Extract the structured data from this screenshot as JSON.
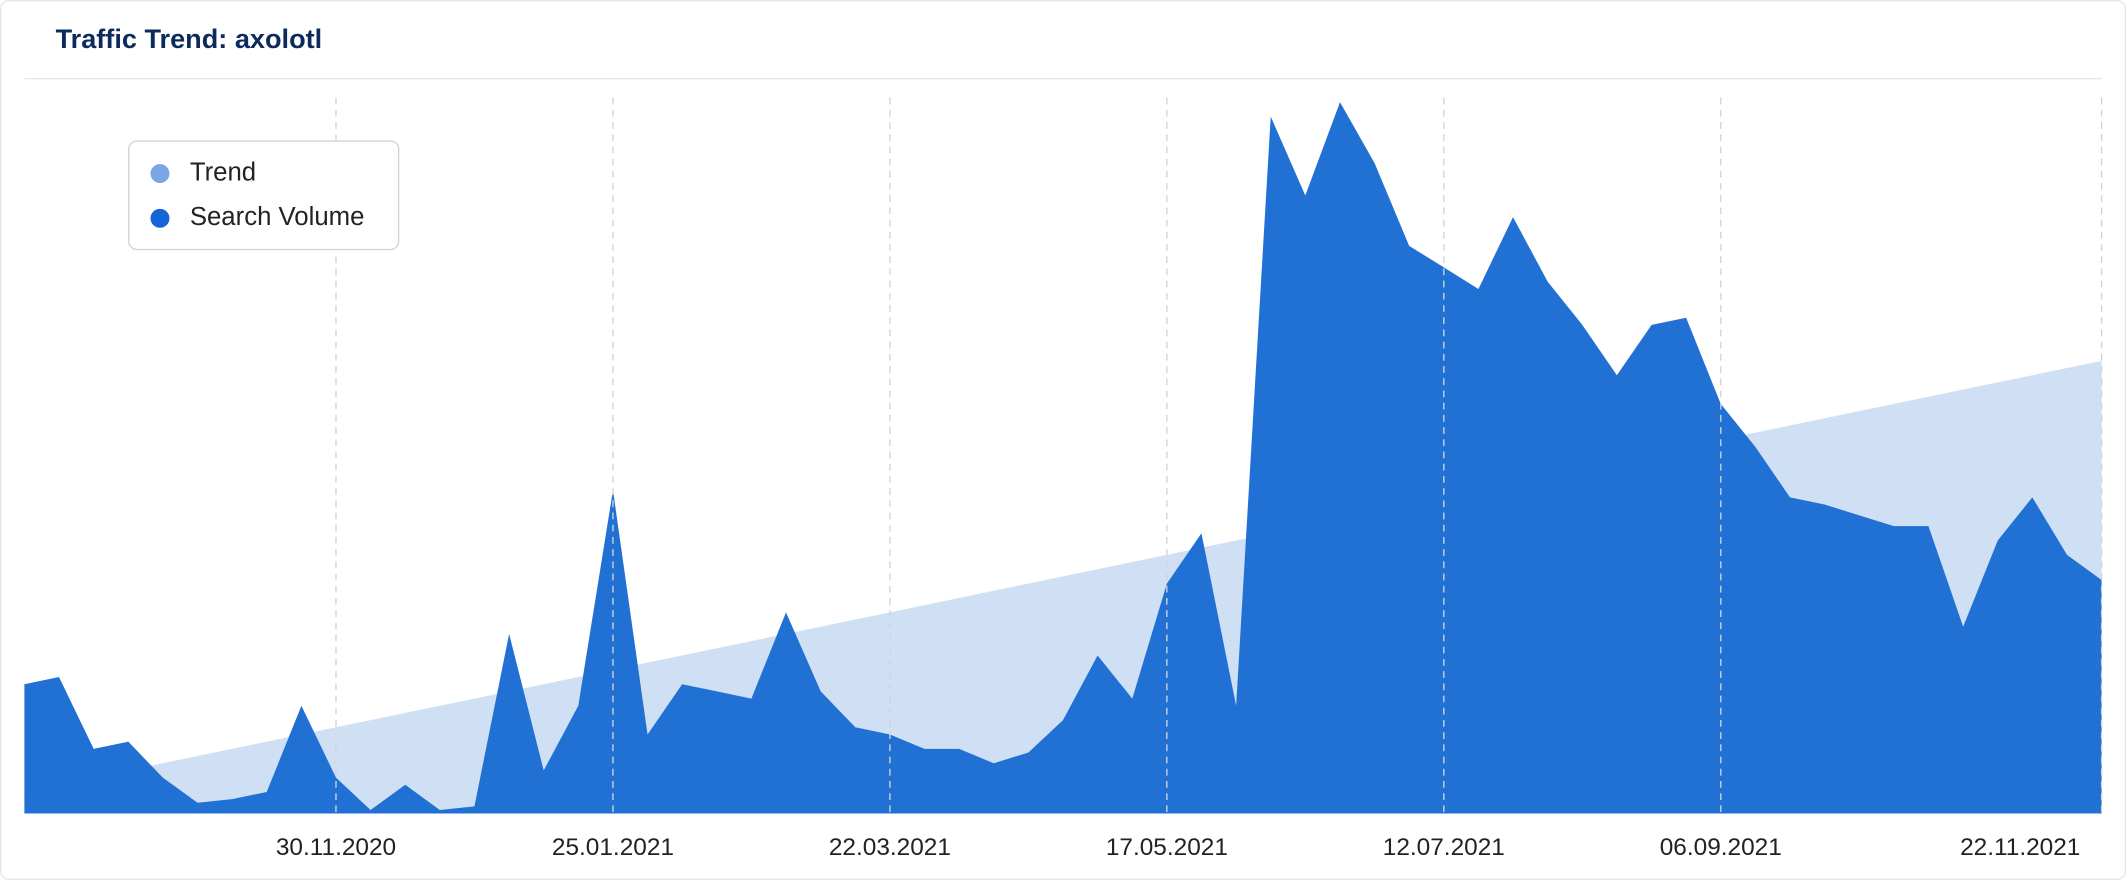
{
  "chart_data": {
    "type": "area",
    "title": "Traffic Trend: axolotl",
    "categories": [
      null,
      null,
      null,
      null,
      null,
      null,
      null,
      null,
      null,
      "30.11.2020",
      null,
      null,
      null,
      null,
      null,
      null,
      null,
      "25.01.2021",
      null,
      null,
      null,
      null,
      null,
      null,
      null,
      "22.03.2021",
      null,
      null,
      null,
      null,
      null,
      null,
      null,
      "17.05.2021",
      null,
      null,
      null,
      null,
      null,
      null,
      null,
      "12.07.2021",
      null,
      null,
      null,
      null,
      null,
      null,
      null,
      "06.09.2021",
      null,
      null,
      null,
      null,
      null,
      null,
      null,
      null,
      null,
      null,
      "22.11.2021"
    ],
    "series": [
      {
        "name": "Trend",
        "color": "#7aa6e6",
        "values": [
          3,
          4,
          5,
          6,
          7,
          8,
          9,
          10,
          11,
          12,
          13,
          14,
          15,
          16,
          17,
          18,
          19,
          20,
          21,
          22,
          23,
          24,
          25,
          26,
          27,
          28,
          29,
          30,
          31,
          32,
          33,
          34,
          35,
          36,
          37,
          38,
          39,
          40,
          41,
          42,
          43,
          44,
          45,
          46,
          47,
          48,
          49,
          50,
          51,
          52,
          53,
          54,
          55,
          56,
          57,
          58,
          59,
          60,
          61,
          62,
          63
        ]
      },
      {
        "name": "Search Volume",
        "color": "#2171d5",
        "values": [
          18,
          19,
          9,
          10,
          5,
          1.5,
          2,
          3,
          15,
          5,
          0.5,
          4,
          0.5,
          1,
          25,
          6,
          15,
          45,
          11,
          18,
          17,
          16,
          28,
          17,
          12,
          11,
          9,
          9,
          7,
          8.5,
          13,
          22,
          16,
          32,
          39,
          15,
          97,
          86,
          99,
          90.5,
          79,
          76,
          73,
          83,
          74,
          68,
          61,
          68,
          69,
          57,
          51,
          44,
          43,
          41.5,
          40,
          40,
          26,
          38,
          44,
          36,
          32.5
        ]
      }
    ],
    "ylim": [
      0,
      100
    ],
    "grid": true,
    "legend": "top-left"
  }
}
